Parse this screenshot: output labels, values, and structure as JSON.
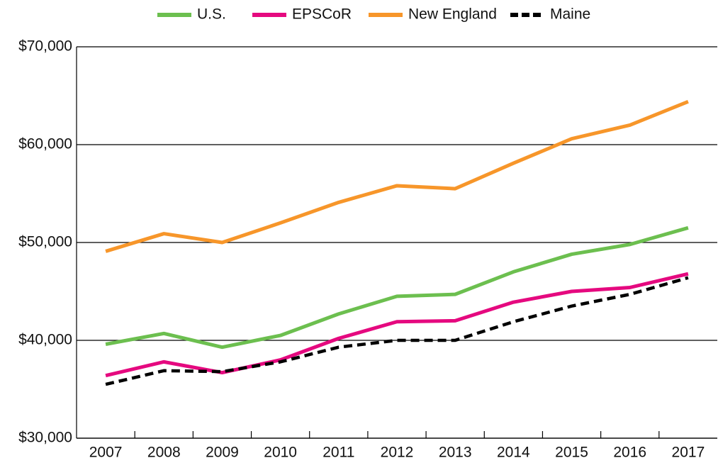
{
  "chart_data": {
    "type": "line",
    "categories": [
      "2007",
      "2008",
      "2009",
      "2010",
      "2011",
      "2012",
      "2013",
      "2014",
      "2015",
      "2016",
      "2017"
    ],
    "series": [
      {
        "name": "U.S.",
        "color": "#6cbf4f",
        "values": [
          39600,
          40700,
          39300,
          40500,
          42700,
          44500,
          44700,
          47000,
          48800,
          49800,
          51500
        ]
      },
      {
        "name": "EPSCoR",
        "color": "#e5097f",
        "values": [
          36400,
          37800,
          36700,
          38000,
          40200,
          41900,
          42000,
          43900,
          45000,
          45400,
          46800
        ]
      },
      {
        "name": "New England",
        "color": "#f7962a",
        "values": [
          49100,
          50900,
          50000,
          52000,
          54100,
          55800,
          55500,
          58100,
          60600,
          62000,
          64400
        ]
      },
      {
        "name": "Maine",
        "color": "#000000",
        "dashed": true,
        "values": [
          35500,
          36900,
          36800,
          37800,
          39300,
          40000,
          40000,
          41900,
          43500,
          44700,
          46400
        ]
      }
    ],
    "ylim": [
      30000,
      70000
    ],
    "yticks": [
      {
        "value": 30000,
        "label": "$30,000"
      },
      {
        "value": 40000,
        "label": "$40,000"
      },
      {
        "value": 50000,
        "label": "$50,000"
      },
      {
        "value": 60000,
        "label": "$60,000"
      },
      {
        "value": 70000,
        "label": "$70,000"
      }
    ],
    "grid": true,
    "legend": "top"
  }
}
